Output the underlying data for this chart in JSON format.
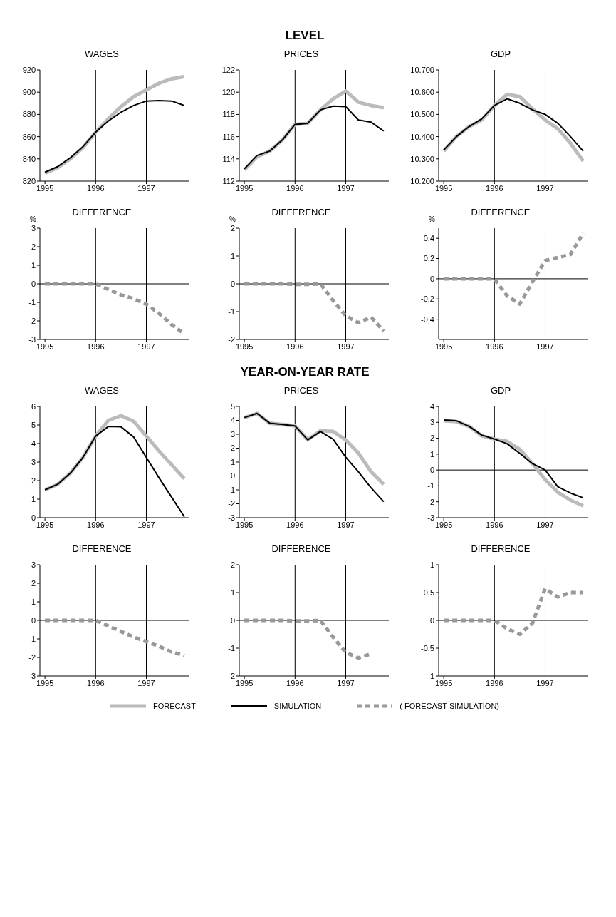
{
  "chart_data": [
    {
      "type": "line",
      "title": "WAGES",
      "annotations": [
        "LEVEL"
      ],
      "legend": "bottom",
      "x": [
        1995,
        1995.25,
        1995.5,
        1995.75,
        1996,
        1996.25,
        1996.5,
        1996.75,
        1997,
        1997.25,
        1997.5,
        1997.75
      ],
      "xlim": [
        1994.9,
        1997.85
      ],
      "xticks": [
        1995,
        1996,
        1997
      ],
      "ylim": [
        820,
        920
      ],
      "yticks": [
        820,
        840,
        860,
        880,
        900,
        920
      ],
      "ref_lines": [
        {
          "axis": "x",
          "value": 1996
        },
        {
          "axis": "x",
          "value": 1997
        }
      ],
      "series": [
        {
          "name": "FORECAST",
          "color": "#bbbbbb",
          "values": [
            827,
            832,
            840,
            850,
            864,
            876,
            887,
            896,
            902,
            908,
            912,
            914
          ]
        },
        {
          "name": "SIMULATION",
          "color": "#000000",
          "values": [
            828,
            833,
            841,
            851,
            864,
            874,
            882,
            888,
            892,
            892.5,
            892,
            888
          ]
        }
      ]
    },
    {
      "type": "line",
      "title": "PRICES",
      "x": [
        1995,
        1995.25,
        1995.5,
        1995.75,
        1996,
        1996.25,
        1996.5,
        1996.75,
        1997,
        1997.25,
        1997.5,
        1997.75
      ],
      "xlim": [
        1994.9,
        1997.85
      ],
      "xticks": [
        1995,
        1996,
        1997
      ],
      "ylim": [
        112,
        122
      ],
      "yticks": [
        112,
        114,
        116,
        118,
        120,
        122
      ],
      "ref_lines": [
        {
          "axis": "x",
          "value": 1996
        },
        {
          "axis": "x",
          "value": 1997
        }
      ],
      "series": [
        {
          "name": "FORECAST",
          "color": "#bbbbbb",
          "values": [
            113,
            114.2,
            114.7,
            115.7,
            117.1,
            117.2,
            118.4,
            119.4,
            120.1,
            119.1,
            118.8,
            118.6
          ]
        },
        {
          "name": "SIMULATION",
          "color": "#000000",
          "values": [
            113.1,
            114.3,
            114.7,
            115.7,
            117.1,
            117.2,
            118.4,
            118.75,
            118.7,
            117.5,
            117.3,
            116.5
          ]
        }
      ]
    },
    {
      "type": "line",
      "title": "GDP",
      "x": [
        1995,
        1995.25,
        1995.5,
        1995.75,
        1996,
        1996.25,
        1996.5,
        1996.75,
        1997,
        1997.25,
        1997.5,
        1997.75
      ],
      "xlim": [
        1994.9,
        1997.85
      ],
      "xticks": [
        1995,
        1996,
        1997
      ],
      "ylim": [
        10200,
        10700
      ],
      "yticks": [
        {
          "value": 10200,
          "label": "10.200"
        },
        {
          "value": 10300,
          "label": "10.300"
        },
        {
          "value": 10400,
          "label": "10.400"
        },
        {
          "value": 10500,
          "label": "10.500"
        },
        {
          "value": 10600,
          "label": "10.600"
        },
        {
          "value": 10700,
          "label": "10.700"
        }
      ],
      "ref_lines": [
        {
          "axis": "x",
          "value": 1996
        },
        {
          "axis": "x",
          "value": 1997
        }
      ],
      "series": [
        {
          "name": "FORECAST",
          "color": "#bbbbbb",
          "values": [
            10335,
            10400,
            10445,
            10475,
            10540,
            10590,
            10580,
            10525,
            10475,
            10435,
            10370,
            10290
          ]
        },
        {
          "name": "SIMULATION",
          "color": "#000000",
          "values": [
            10340,
            10400,
            10445,
            10480,
            10540,
            10570,
            10550,
            10520,
            10500,
            10460,
            10400,
            10335
          ]
        }
      ]
    },
    {
      "type": "line",
      "title": "DIFFERENCE",
      "ylabel": "%",
      "x": [
        1995,
        1995.25,
        1995.5,
        1995.75,
        1996,
        1996.25,
        1996.5,
        1996.75,
        1997,
        1997.25,
        1997.5,
        1997.75
      ],
      "xlim": [
        1994.9,
        1997.85
      ],
      "xticks": [
        1995,
        1996,
        1997
      ],
      "ylim": [
        -3,
        3
      ],
      "yticks": [
        -3,
        -2,
        -1,
        0,
        1,
        2,
        3
      ],
      "ref_lines": [
        {
          "axis": "y",
          "value": 0
        },
        {
          "axis": "x",
          "value": 1996
        },
        {
          "axis": "x",
          "value": 1997
        }
      ],
      "series": [
        {
          "name": "( FORECAST-SIMULATION)",
          "color": "#999999",
          "line_style": "dashed",
          "values": [
            0,
            0,
            0,
            0,
            0,
            -0.3,
            -0.6,
            -0.8,
            -1.1,
            -1.6,
            -2.2,
            -2.7
          ]
        }
      ]
    },
    {
      "type": "line",
      "title": "DIFFERENCE",
      "ylabel": "%",
      "x": [
        1995,
        1995.25,
        1995.5,
        1995.75,
        1996,
        1996.25,
        1996.5,
        1996.75,
        1997,
        1997.25,
        1997.5,
        1997.75
      ],
      "xlim": [
        1994.9,
        1997.85
      ],
      "xticks": [
        1995,
        1996,
        1997
      ],
      "ylim": [
        -2,
        2
      ],
      "yticks": [
        -2,
        -1,
        0,
        1,
        2
      ],
      "ref_lines": [
        {
          "axis": "y",
          "value": 0
        },
        {
          "axis": "x",
          "value": 1996
        },
        {
          "axis": "x",
          "value": 1997
        }
      ],
      "series": [
        {
          "name": "( FORECAST-SIMULATION)",
          "color": "#999999",
          "line_style": "dashed",
          "values": [
            0,
            0,
            0,
            0,
            -0.02,
            -0.02,
            0,
            -0.6,
            -1.15,
            -1.4,
            -1.2,
            -1.7
          ]
        }
      ]
    },
    {
      "type": "line",
      "title": "DIFFERENCE",
      "ylabel": "%",
      "x": [
        1995,
        1995.25,
        1995.5,
        1995.75,
        1996,
        1996.25,
        1996.5,
        1996.75,
        1997,
        1997.25,
        1997.5,
        1997.75
      ],
      "xlim": [
        1994.9,
        1997.85
      ],
      "xticks": [
        1995,
        1996,
        1997
      ],
      "ylim": [
        -0.6,
        0.5
      ],
      "yticks": [
        {
          "value": -0.4,
          "label": "-0,4"
        },
        {
          "value": -0.2,
          "label": "-0,2"
        },
        0,
        {
          "value": 0.2,
          "label": "0,2"
        },
        {
          "value": 0.4,
          "label": "0,4"
        }
      ],
      "ref_lines": [
        {
          "axis": "y",
          "value": 0
        },
        {
          "axis": "x",
          "value": 1996
        },
        {
          "axis": "x",
          "value": 1997
        }
      ],
      "series": [
        {
          "name": "( FORECAST-SIMULATION)",
          "color": "#999999",
          "line_style": "dashed",
          "values": [
            0,
            0,
            0,
            0,
            0,
            -0.17,
            -0.25,
            -0.03,
            0.18,
            0.21,
            0.24,
            0.45
          ]
        }
      ]
    },
    {
      "type": "line",
      "title": "WAGES",
      "annotations": [
        "YEAR-ON-YEAR RATE"
      ],
      "x": [
        1995,
        1995.25,
        1995.5,
        1995.75,
        1996,
        1996.25,
        1996.5,
        1996.75,
        1997,
        1997.25,
        1997.5,
        1997.75
      ],
      "xlim": [
        1994.9,
        1997.85
      ],
      "xticks": [
        1995,
        1996,
        1997
      ],
      "ylim": [
        0,
        6
      ],
      "yticks": [
        0,
        1,
        2,
        3,
        4,
        5,
        6
      ],
      "ref_lines": [
        {
          "axis": "x",
          "value": 1996
        },
        {
          "axis": "x",
          "value": 1997
        }
      ],
      "series": [
        {
          "name": "FORECAST",
          "color": "#bbbbbb",
          "values": [
            1.5,
            1.8,
            2.4,
            3.25,
            4.4,
            5.25,
            5.5,
            5.2,
            4.4,
            3.6,
            2.85,
            2.1
          ]
        },
        {
          "name": "SIMULATION",
          "color": "#000000",
          "values": [
            1.5,
            1.8,
            2.4,
            3.25,
            4.4,
            4.92,
            4.9,
            4.35,
            3.25,
            2.15,
            1.1,
            0.05
          ]
        }
      ]
    },
    {
      "type": "line",
      "title": "PRICES",
      "x": [
        1995,
        1995.25,
        1995.5,
        1995.75,
        1996,
        1996.25,
        1996.5,
        1996.75,
        1997,
        1997.25,
        1997.5,
        1997.75
      ],
      "xlim": [
        1994.9,
        1997.85
      ],
      "xticks": [
        1995,
        1996,
        1997
      ],
      "ylim": [
        -3,
        5
      ],
      "yticks": [
        -3,
        -2,
        -1,
        0,
        1,
        2,
        3,
        4,
        5
      ],
      "ref_lines": [
        {
          "axis": "y",
          "value": 0
        },
        {
          "axis": "x",
          "value": 1996
        },
        {
          "axis": "x",
          "value": 1997
        }
      ],
      "series": [
        {
          "name": "FORECAST",
          "color": "#bbbbbb",
          "values": [
            4.2,
            4.5,
            3.8,
            3.7,
            3.6,
            2.6,
            3.25,
            3.2,
            2.6,
            1.65,
            0.3,
            -0.6
          ]
        },
        {
          "name": "SIMULATION",
          "color": "#000000",
          "values": [
            4.2,
            4.5,
            3.8,
            3.7,
            3.6,
            2.6,
            3.2,
            2.65,
            1.35,
            0.3,
            -0.85,
            -1.85
          ]
        }
      ]
    },
    {
      "type": "line",
      "title": "GDP",
      "x": [
        1995,
        1995.25,
        1995.5,
        1995.75,
        1996,
        1996.25,
        1996.5,
        1996.75,
        1997,
        1997.25,
        1997.5,
        1997.75
      ],
      "xlim": [
        1994.9,
        1997.85
      ],
      "xticks": [
        1995,
        1996,
        1997
      ],
      "ylim": [
        -3,
        4
      ],
      "yticks": [
        -3,
        -2,
        -1,
        0,
        1,
        2,
        3,
        4
      ],
      "ref_lines": [
        {
          "axis": "y",
          "value": 0
        },
        {
          "axis": "x",
          "value": 1996
        },
        {
          "axis": "x",
          "value": 1997
        }
      ],
      "series": [
        {
          "name": "FORECAST",
          "color": "#bbbbbb",
          "values": [
            3.1,
            3.05,
            2.75,
            2.15,
            1.95,
            1.8,
            1.3,
            0.4,
            -0.6,
            -1.4,
            -1.9,
            -2.25
          ]
        },
        {
          "name": "SIMULATION",
          "color": "#000000",
          "values": [
            3.15,
            3.1,
            2.75,
            2.2,
            1.95,
            1.65,
            1.05,
            0.4,
            0,
            -1.05,
            -1.45,
            -1.75
          ]
        }
      ]
    },
    {
      "type": "line",
      "title": "DIFFERENCE",
      "x": [
        1995,
        1995.25,
        1995.5,
        1995.75,
        1996,
        1996.25,
        1996.5,
        1996.75,
        1997,
        1997.25,
        1997.5,
        1997.75
      ],
      "xlim": [
        1994.9,
        1997.85
      ],
      "xticks": [
        1995,
        1996,
        1997
      ],
      "ylim": [
        -3,
        3
      ],
      "yticks": [
        -3,
        -2,
        -1,
        0,
        1,
        2,
        3
      ],
      "ref_lines": [
        {
          "axis": "y",
          "value": 0
        },
        {
          "axis": "x",
          "value": 1996
        },
        {
          "axis": "x",
          "value": 1997
        }
      ],
      "series": [
        {
          "name": "( FORECAST-SIMULATION)",
          "color": "#999999",
          "line_style": "dashed",
          "values": [
            0,
            0,
            0,
            0,
            0,
            -0.3,
            -0.6,
            -0.9,
            -1.15,
            -1.4,
            -1.7,
            -1.9
          ]
        }
      ]
    },
    {
      "type": "line",
      "title": "DIFFERENCE",
      "x": [
        1995,
        1995.25,
        1995.5,
        1995.75,
        1996,
        1996.25,
        1996.5,
        1996.75,
        1997,
        1997.25,
        1997.5
      ],
      "xlim": [
        1994.9,
        1997.85
      ],
      "xticks": [
        1995,
        1996,
        1997
      ],
      "ylim": [
        -2,
        2
      ],
      "yticks": [
        -2,
        -1,
        0,
        1,
        2
      ],
      "ref_lines": [
        {
          "axis": "y",
          "value": 0
        },
        {
          "axis": "x",
          "value": 1996
        },
        {
          "axis": "x",
          "value": 1997
        }
      ],
      "series": [
        {
          "name": "( FORECAST-SIMULATION)",
          "color": "#999999",
          "line_style": "dashed",
          "values": [
            0,
            0,
            0,
            0,
            -0.02,
            -0.02,
            0,
            -0.6,
            -1.15,
            -1.35,
            -1.2
          ]
        }
      ]
    },
    {
      "type": "line",
      "title": "DIFFERENCE",
      "x": [
        1995,
        1995.25,
        1995.5,
        1995.75,
        1996,
        1996.25,
        1996.5,
        1996.75,
        1997,
        1997.25,
        1997.5,
        1997.75
      ],
      "xlim": [
        1994.9,
        1997.85
      ],
      "xticks": [
        1995,
        1996,
        1997
      ],
      "ylim": [
        -1,
        1
      ],
      "yticks": [
        -1,
        {
          "value": -0.5,
          "label": "-0,5"
        },
        0,
        {
          "value": 0.5,
          "label": "0,5"
        },
        1
      ],
      "ref_lines": [
        {
          "axis": "y",
          "value": 0
        },
        {
          "axis": "x",
          "value": 1996
        },
        {
          "axis": "x",
          "value": 1997
        }
      ],
      "series": [
        {
          "name": "( FORECAST-SIMULATION)",
          "color": "#999999",
          "line_style": "dashed",
          "values": [
            0,
            0,
            0,
            0,
            0,
            -0.15,
            -0.25,
            -0.05,
            0.57,
            0.42,
            0.5,
            0.5
          ]
        }
      ]
    }
  ]
}
